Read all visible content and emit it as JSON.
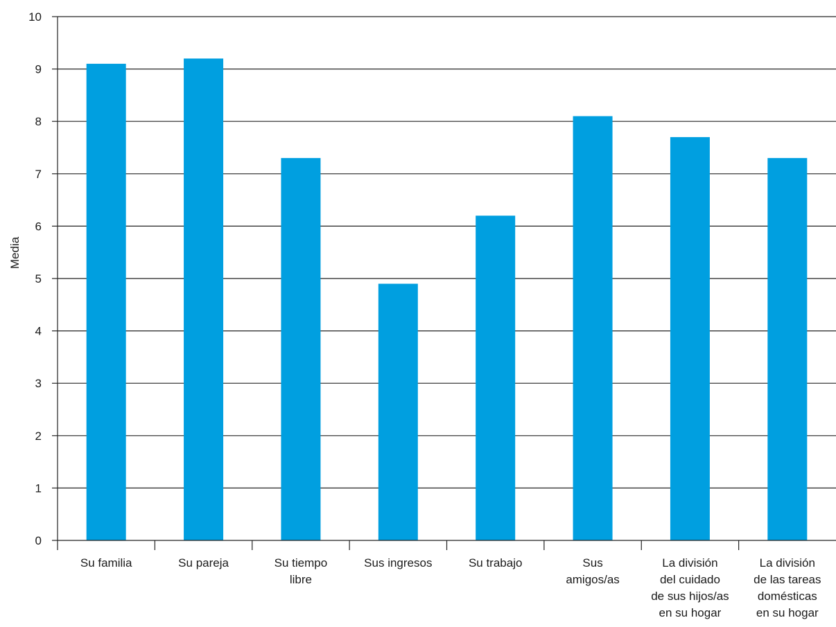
{
  "chart_data": {
    "type": "bar",
    "title": "",
    "xlabel": "",
    "ylabel": "Media",
    "ylim": [
      0,
      10
    ],
    "yticks": [
      0,
      1,
      2,
      3,
      4,
      5,
      6,
      7,
      8,
      9,
      10
    ],
    "grid": "horizontal",
    "legend": "none",
    "bar_color": "#009fe0",
    "categories": [
      "Su familia",
      "Su pareja",
      "Su tiempo libre",
      "Sus ingresos",
      "Su trabajo",
      "Sus amigos/as",
      "La división del cuidado de sus hijos/as en su hogar",
      "La división de las tareas domésticas en su hogar"
    ],
    "category_lines": [
      [
        "Su familia"
      ],
      [
        "Su pareja"
      ],
      [
        "Su tiempo",
        "libre"
      ],
      [
        "Sus ingresos"
      ],
      [
        "Su trabajo"
      ],
      [
        "Sus",
        "amigos/as"
      ],
      [
        "La división",
        "del cuidado",
        "de sus hijos/as",
        "en su hogar"
      ],
      [
        "La división",
        "de las tareas",
        "domésticas",
        "en su hogar"
      ]
    ],
    "values": [
      9.1,
      9.2,
      7.3,
      4.9,
      6.2,
      8.1,
      7.7,
      7.3
    ]
  }
}
